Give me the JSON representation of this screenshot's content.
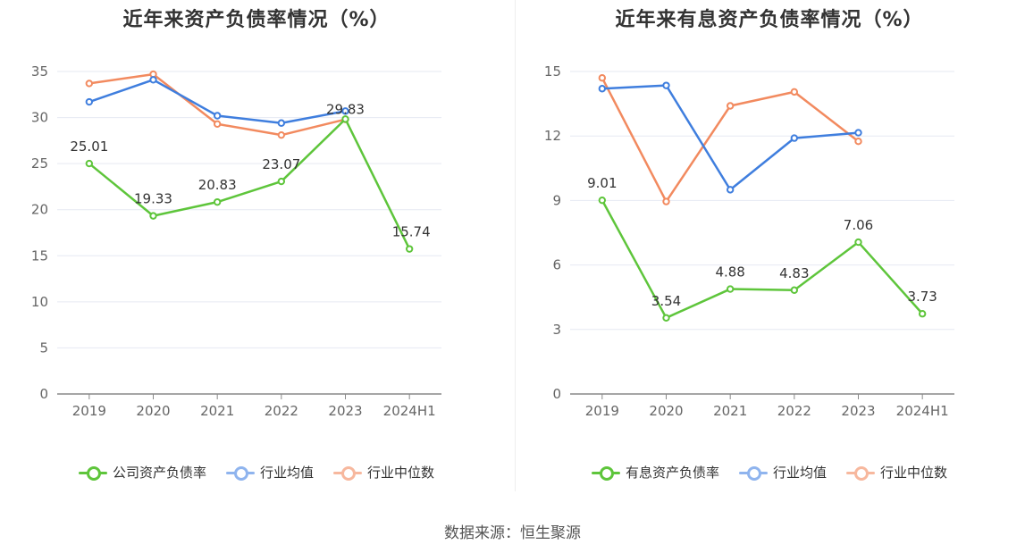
{
  "chart_data": [
    {
      "type": "line",
      "title": "近年来资产负债率情况（%）",
      "categories": [
        "2019",
        "2020",
        "2021",
        "2022",
        "2023",
        "2024H1"
      ],
      "ylim": [
        0,
        35
      ],
      "yticks": [
        0,
        5,
        10,
        15,
        20,
        25,
        30,
        35
      ],
      "legend_position": "bottom",
      "grid": true,
      "series": [
        {
          "name": "公司资产负债率",
          "color": "#5ec53b",
          "values": [
            25.01,
            19.33,
            20.83,
            23.07,
            29.83,
            15.74
          ],
          "labels": [
            "25.01",
            "19.33",
            "20.83",
            "23.07",
            "29.83",
            "15.74"
          ]
        },
        {
          "name": "行业均值",
          "color": "#3f7ede",
          "values": [
            31.7,
            34.1,
            30.2,
            29.4,
            30.7,
            null
          ]
        },
        {
          "name": "行业中位数",
          "color": "#f28a5f",
          "values": [
            33.7,
            34.7,
            29.3,
            28.1,
            29.8,
            null
          ]
        }
      ]
    },
    {
      "type": "line",
      "title": "近年来有息资产负债率情况（%）",
      "categories": [
        "2019",
        "2020",
        "2021",
        "2022",
        "2023",
        "2024H1"
      ],
      "ylim": [
        0,
        15
      ],
      "yticks": [
        0,
        3,
        6,
        9,
        12,
        15
      ],
      "legend_position": "bottom",
      "grid": true,
      "series": [
        {
          "name": "有息资产负债率",
          "color": "#5ec53b",
          "values": [
            9.01,
            3.54,
            4.88,
            4.83,
            7.06,
            3.73
          ],
          "labels": [
            "9.01",
            "3.54",
            "4.88",
            "4.83",
            "7.06",
            "3.73"
          ]
        },
        {
          "name": "行业均值",
          "color": "#3f7ede",
          "values": [
            14.2,
            14.35,
            9.5,
            11.9,
            12.15,
            null
          ]
        },
        {
          "name": "行业中位数",
          "color": "#f28a5f",
          "values": [
            14.7,
            8.95,
            13.4,
            14.05,
            11.75,
            null
          ]
        }
      ]
    }
  ],
  "legend_colors_faded": {
    "行业均值": "#8fb4ee",
    "行业中位数": "#f7b89e"
  },
  "source": "数据来源：恒生聚源"
}
